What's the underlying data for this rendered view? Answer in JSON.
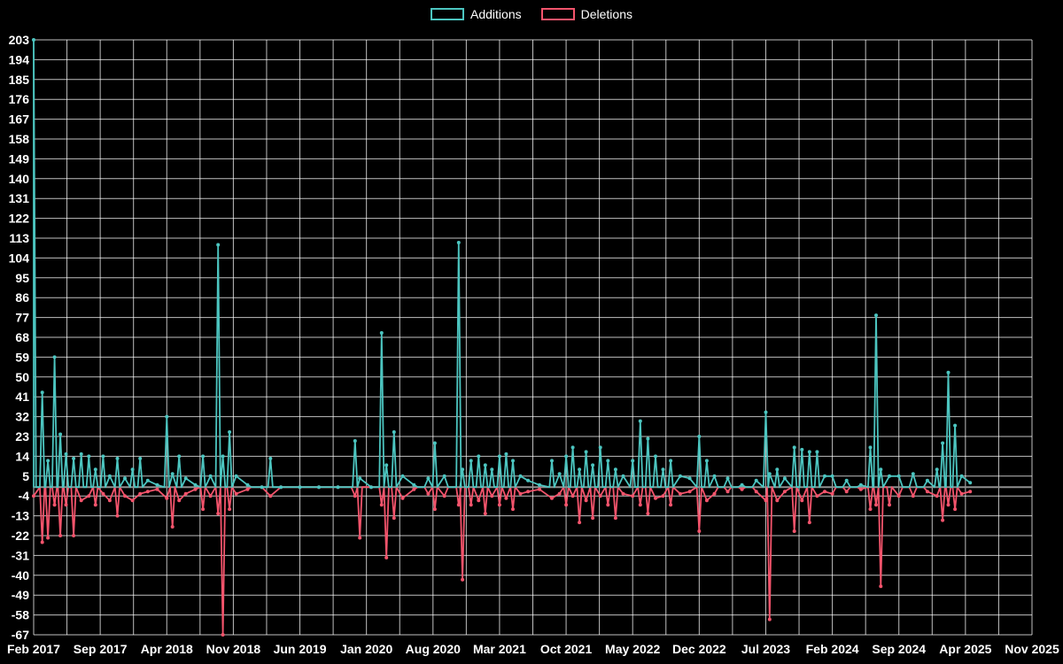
{
  "chart_data": {
    "type": "line",
    "title": "",
    "background": "#000000",
    "grid": true,
    "legend_position": "top-center",
    "x_axis": {
      "tick_labels": [
        "Feb 2017",
        "Sep 2017",
        "Apr 2018",
        "Nov 2018",
        "Jun 2019",
        "Jan 2020",
        "Aug 2020",
        "Mar 2021",
        "Oct 2021",
        "May 2022",
        "Dec 2022",
        "Jul 2023",
        "Feb 2024",
        "Sep 2024",
        "Apr 2025",
        "Nov 2025"
      ],
      "months_span": 105
    },
    "y_axis": {
      "min": -67,
      "max": 203,
      "step": 9,
      "ticks": [
        203,
        194,
        185,
        176,
        167,
        158,
        149,
        140,
        131,
        122,
        113,
        104,
        95,
        86,
        77,
        68,
        59,
        50,
        41,
        32,
        23,
        14,
        5,
        -4,
        -13,
        -22,
        -31,
        -40,
        -49,
        -58,
        -67
      ]
    },
    "baseline": 0,
    "baseline_color": "#8f8f8f",
    "grid_color": "#ffffff",
    "series_meta": [
      {
        "name": "Additions",
        "color": "#4cc5c0"
      },
      {
        "name": "Deletions",
        "color": "#f4546c"
      }
    ],
    "points_format": [
      "month_offset_from_Feb_2017",
      "additions",
      "deletions"
    ],
    "points": [
      [
        0,
        203,
        -4
      ],
      [
        0.9,
        43,
        -25
      ],
      [
        1.5,
        12,
        -23
      ],
      [
        2.2,
        59,
        -8
      ],
      [
        2.8,
        24,
        -22
      ],
      [
        3.4,
        15,
        -8
      ],
      [
        4.2,
        13,
        -22
      ],
      [
        5,
        15,
        -6
      ],
      [
        5.8,
        14,
        -4
      ],
      [
        6.5,
        8,
        -8
      ],
      [
        7.3,
        14,
        -3
      ],
      [
        8,
        5,
        -6
      ],
      [
        8.8,
        13,
        -13
      ],
      [
        9.6,
        4,
        -4
      ],
      [
        10.4,
        8,
        -6
      ],
      [
        11.2,
        13,
        -3
      ],
      [
        12,
        3,
        -2
      ],
      [
        13,
        1,
        -1
      ],
      [
        14,
        32,
        -5
      ],
      [
        14.6,
        6,
        -18
      ],
      [
        15.3,
        14,
        -6
      ],
      [
        16,
        4,
        -3
      ],
      [
        17,
        1,
        -1
      ],
      [
        17.8,
        14,
        -10
      ],
      [
        18.6,
        5,
        -4
      ],
      [
        19.4,
        110,
        -12
      ],
      [
        19.9,
        14,
        -67
      ],
      [
        20.6,
        25,
        -10
      ],
      [
        21.3,
        5,
        -3
      ],
      [
        22.5,
        1,
        -1
      ],
      [
        24,
        0,
        0
      ],
      [
        24.9,
        13,
        -4
      ],
      [
        26,
        0,
        0
      ],
      [
        28,
        0,
        0
      ],
      [
        30,
        0,
        0
      ],
      [
        32,
        0,
        0
      ],
      [
        33.8,
        21,
        -4
      ],
      [
        34.3,
        4,
        -23
      ],
      [
        35.5,
        0,
        0
      ],
      [
        36.6,
        70,
        -8
      ],
      [
        37.1,
        10,
        -32
      ],
      [
        37.9,
        25,
        -14
      ],
      [
        38.8,
        5,
        -5
      ],
      [
        40,
        1,
        -1
      ],
      [
        41.5,
        4,
        -3
      ],
      [
        42.2,
        20,
        -10
      ],
      [
        43.2,
        5,
        -4
      ],
      [
        44.7,
        111,
        -8
      ],
      [
        45.1,
        8,
        -42
      ],
      [
        46,
        12,
        -8
      ],
      [
        46.8,
        14,
        -6
      ],
      [
        47.5,
        10,
        -12
      ],
      [
        48.2,
        8,
        -4
      ],
      [
        49,
        14,
        -8
      ],
      [
        49.7,
        15,
        -5
      ],
      [
        50.4,
        12,
        -10
      ],
      [
        51.2,
        5,
        -3
      ],
      [
        52,
        3,
        -2
      ],
      [
        53.2,
        1,
        -1
      ],
      [
        54.5,
        12,
        -5
      ],
      [
        55.3,
        6,
        -3
      ],
      [
        56,
        14,
        -8
      ],
      [
        56.7,
        18,
        -4
      ],
      [
        57.4,
        8,
        -16
      ],
      [
        58.1,
        16,
        -6
      ],
      [
        58.8,
        10,
        -14
      ],
      [
        59.6,
        18,
        -4
      ],
      [
        60.4,
        12,
        -8
      ],
      [
        61.2,
        8,
        -14
      ],
      [
        62,
        5,
        -3
      ],
      [
        63,
        12,
        -4
      ],
      [
        63.8,
        30,
        -8
      ],
      [
        64.6,
        22,
        -12
      ],
      [
        65.4,
        14,
        -5
      ],
      [
        66.2,
        8,
        -4
      ],
      [
        67,
        12,
        -8
      ],
      [
        68,
        5,
        -3
      ],
      [
        69,
        4,
        -2
      ],
      [
        70,
        23,
        -20
      ],
      [
        70.8,
        12,
        -6
      ],
      [
        71.6,
        5,
        -3
      ],
      [
        73,
        4,
        -2
      ],
      [
        74.5,
        1,
        -1
      ],
      [
        76,
        3,
        -2
      ],
      [
        77,
        34,
        -6
      ],
      [
        77.4,
        6,
        -60
      ],
      [
        78.2,
        8,
        -6
      ],
      [
        79,
        4,
        -2
      ],
      [
        80,
        18,
        -20
      ],
      [
        80.8,
        17,
        -6
      ],
      [
        81.6,
        16,
        -16
      ],
      [
        82.4,
        16,
        -4
      ],
      [
        83.2,
        5,
        -2
      ],
      [
        84,
        5,
        -3
      ],
      [
        85.5,
        3,
        -2
      ],
      [
        87,
        1,
        -1
      ],
      [
        88,
        18,
        -10
      ],
      [
        88.6,
        78,
        -8
      ],
      [
        89.1,
        8,
        -45
      ],
      [
        90,
        5,
        -8
      ],
      [
        91,
        5,
        -4
      ],
      [
        92.5,
        6,
        -4
      ],
      [
        94,
        3,
        -2
      ],
      [
        95,
        8,
        -4
      ],
      [
        95.6,
        20,
        -15
      ],
      [
        96.2,
        52,
        -8
      ],
      [
        96.9,
        28,
        -10
      ],
      [
        97.6,
        5,
        -3
      ],
      [
        98.5,
        2,
        -2
      ]
    ]
  }
}
